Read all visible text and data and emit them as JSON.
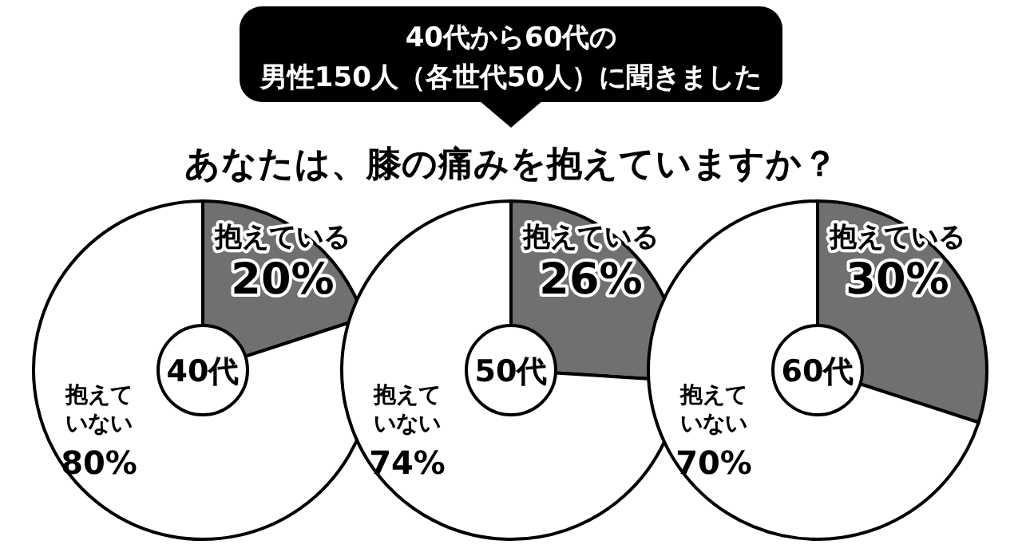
{
  "chart_data": [
    {
      "type": "donut",
      "title": "40代",
      "annotations": [
        "40代から60代の",
        "男性150人（各世代50人）に聞きました",
        "あなたは、膝の痛みを抱えていますか？"
      ],
      "categories": [
        "抱えている",
        "抱えていない"
      ],
      "values": [
        20,
        80
      ],
      "value_labels": [
        "20%",
        "80%"
      ],
      "colors": [
        "#707070",
        "#ffffff"
      ]
    },
    {
      "type": "donut",
      "title": "50代",
      "categories": [
        "抱えている",
        "抱えていない"
      ],
      "values": [
        26,
        74
      ],
      "value_labels": [
        "26%",
        "74%"
      ],
      "colors": [
        "#707070",
        "#ffffff"
      ]
    },
    {
      "type": "donut",
      "title": "60代",
      "categories": [
        "抱えている",
        "抱えていない"
      ],
      "values": [
        30,
        70
      ],
      "value_labels": [
        "30%",
        "70%"
      ],
      "colors": [
        "#707070",
        "#ffffff"
      ]
    }
  ]
}
